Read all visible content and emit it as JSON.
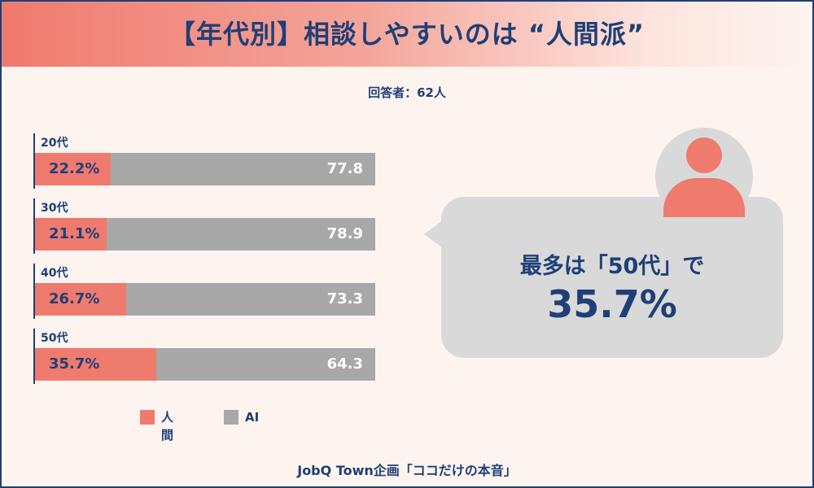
{
  "header": {
    "title": "【年代別】相談しやすいのは “人間派”"
  },
  "respondents": "回答者：62人",
  "chart_data": {
    "type": "bar",
    "stacked": true,
    "orientation": "horizontal",
    "percent_scale": 100,
    "categories": [
      "20代",
      "30代",
      "40代",
      "50代"
    ],
    "series": [
      {
        "name": "人間",
        "values": [
          22.2,
          21.1,
          26.7,
          35.7
        ],
        "labels": [
          "22.2%",
          "21.1%",
          "26.7%",
          "35.7%"
        ],
        "color": "#ef7a6e"
      },
      {
        "name": "AI",
        "values": [
          77.8,
          78.9,
          73.3,
          64.3
        ],
        "labels": [
          "77.8",
          "78.9",
          "73.3",
          "64.3"
        ],
        "color": "#a8a8a8"
      }
    ],
    "legend": {
      "placement": "bottom",
      "items": [
        "人間",
        "AI"
      ]
    }
  },
  "callout": {
    "line1": "最多は「50代」で",
    "line2": "35.7%",
    "icon": "person-icon"
  },
  "footer": "JobQ Town企画「ココだけの本音」",
  "colors": {
    "accent": "#ef7a6e",
    "navy": "#1f3f77",
    "gray": "#a8a8a8",
    "bubble": "#d9d9d9",
    "background": "#fdf4f0"
  }
}
